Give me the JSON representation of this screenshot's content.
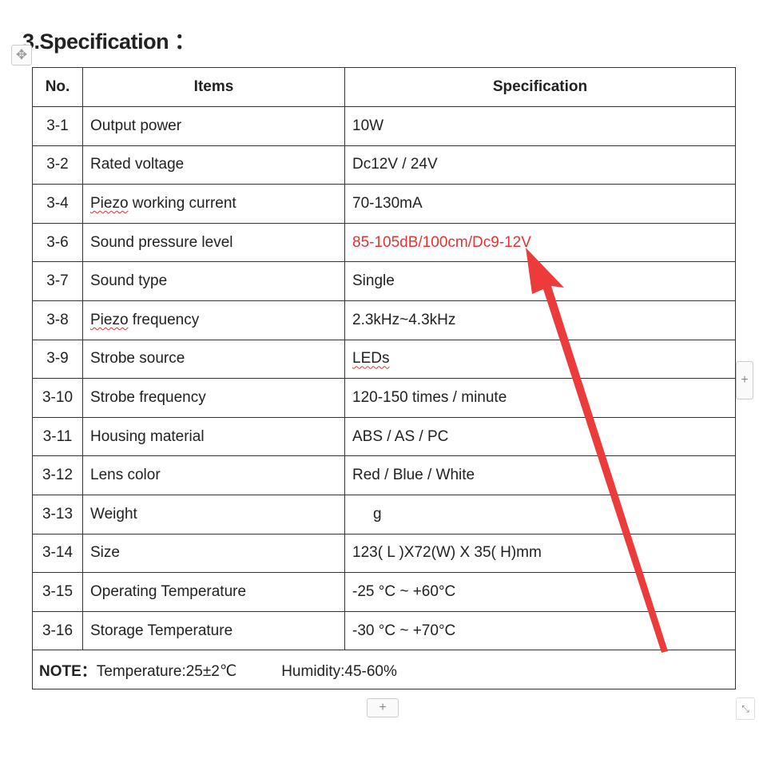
{
  "title": "3.Specification ：",
  "table": {
    "headers": [
      "No.",
      "Items",
      "Specification"
    ],
    "rows": [
      {
        "no": "3-1",
        "item": "Output power",
        "spec": "10W"
      },
      {
        "no": "3-2",
        "item": "Rated voltage",
        "spec": "Dc12V / 24V"
      },
      {
        "no": "3-4",
        "item": "Piezo working current",
        "spec": "70-130mA"
      },
      {
        "no": "3-6",
        "item": "Sound pressure level",
        "spec": "85-105dB/100cm/Dc9-12V"
      },
      {
        "no": "3-7",
        "item": "Sound type",
        "spec": "Single"
      },
      {
        "no": "3-8",
        "item": "Piezo frequency",
        "spec": "2.3kHz~4.3kHz"
      },
      {
        "no": "3-9",
        "item": "Strobe source",
        "spec": "LEDs"
      },
      {
        "no": "3-10",
        "item": "Strobe frequency",
        "spec": "120-150 times / minute"
      },
      {
        "no": "3-11",
        "item": "Housing material",
        "spec": "ABS / AS / PC"
      },
      {
        "no": "3-12",
        "item": "Lens color",
        "spec": "Red / Blue / White"
      },
      {
        "no": "3-13",
        "item": "Weight",
        "spec": "g"
      },
      {
        "no": "3-14",
        "item": "Size",
        "spec": "123( L )X72(W) X 35( H)mm"
      },
      {
        "no": "3-15",
        "item": "Operating Temperature",
        "spec": "-25 °C ~ +60°C"
      },
      {
        "no": "3-16",
        "item": "Storage Temperature",
        "spec": "-30 °C ~ +70°C"
      }
    ],
    "note_label": "NOTE：",
    "note_temperature": "Temperature:25±2℃",
    "note_humidity": "Humidity:45-60%"
  },
  "colors": {
    "highlight_text": "#e8322f",
    "arrow": "#ec3b3b"
  },
  "icons": {
    "move": "move-handle-icon",
    "add_column": "plus-icon",
    "add_row": "plus-icon",
    "resize": "resize-icon"
  }
}
